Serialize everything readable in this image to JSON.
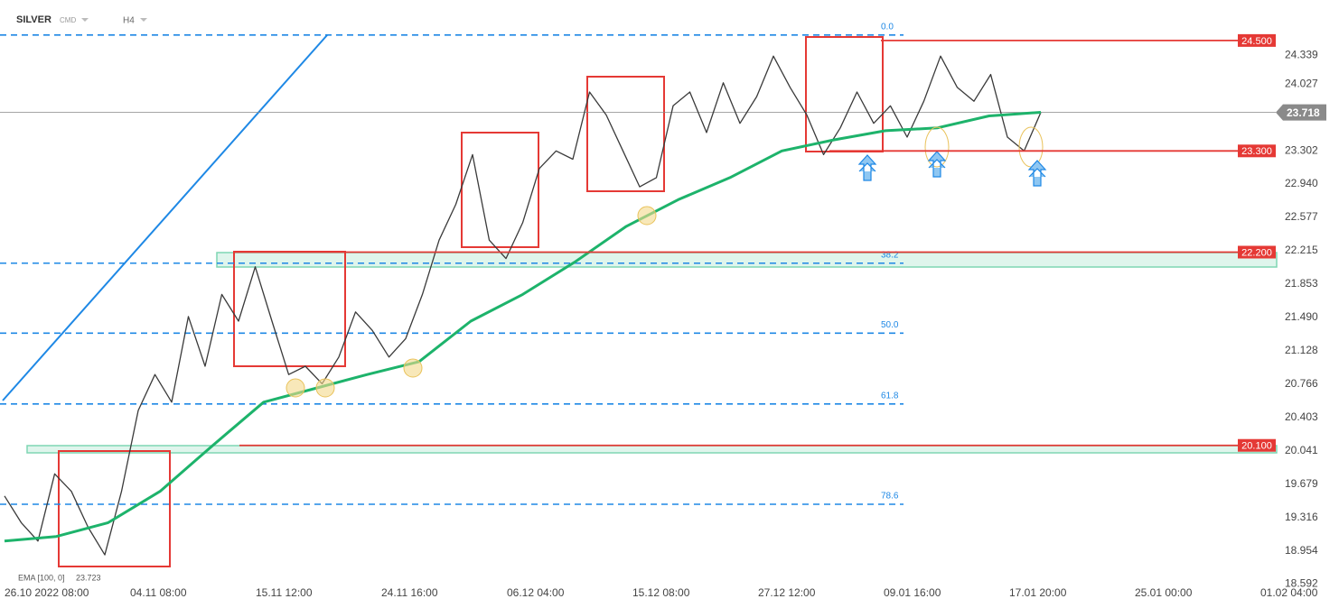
{
  "header": {
    "symbol": "SILVER",
    "kind": "CMD",
    "timeframe": "H4"
  },
  "chart_data": {
    "type": "line",
    "x_labels": [
      "26.10 2022 08:00",
      "04.11 08:00",
      "15.11 12:00",
      "24.11 16:00",
      "06.12 04:00",
      "15.12 08:00",
      "27.12 12:00",
      "09.01 16:00",
      "17.01 20:00",
      "25.01 00:00",
      "01.02 04:00"
    ],
    "ylim": [
      18.47,
      24.94
    ],
    "yticks": [
      24.339,
      24.027,
      23.302,
      {
        "value": 22.94,
        "label": "22.940"
      },
      22.577,
      22.215,
      21.853,
      {
        "value": 21.49,
        "label": "21.490"
      },
      21.128,
      20.766,
      20.403,
      20.041,
      19.679,
      19.316,
      18.954,
      18.592
    ],
    "series": [
      {
        "color": "#3a3a3a",
        "values": [
          19.55,
          19.26,
          19.06,
          19.79,
          19.6,
          19.21,
          18.91,
          19.6,
          20.48,
          20.87,
          20.57,
          21.5,
          20.96,
          21.74,
          21.45,
          22.04,
          21.45,
          20.87,
          20.96,
          20.77,
          21.06,
          21.55,
          21.35,
          21.06,
          21.26,
          21.74,
          22.33,
          22.72,
          23.26,
          22.33,
          22.13,
          22.52,
          23.11,
          23.3,
          23.21,
          23.94,
          23.69,
          23.3,
          22.91,
          23.01,
          23.79,
          23.94,
          23.5,
          24.04,
          23.6,
          23.89,
          24.33,
          23.99,
          23.69,
          23.26,
          23.55,
          23.94,
          23.6,
          23.79,
          23.45,
          23.84,
          24.33,
          23.99,
          23.84,
          24.13,
          23.45,
          23.3,
          23.72
        ]
      },
      {
        "name": "EMA [100, 0]",
        "color": "#1db36b",
        "last_value": 23.723,
        "values": [
          19.06,
          19.11,
          19.26,
          19.6,
          20.09,
          20.57,
          20.72,
          20.87,
          21.01,
          21.45,
          21.74,
          22.09,
          22.48,
          22.77,
          23.01,
          23.3,
          23.42,
          23.52,
          23.55,
          23.68,
          23.72
        ]
      }
    ],
    "levels": [
      {
        "value": 24.5,
        "label": "24.500"
      },
      {
        "value": 23.3,
        "label": "23.300"
      },
      {
        "value": 22.2,
        "label": "22.200"
      },
      {
        "value": 20.1,
        "label": "20.100"
      }
    ],
    "last_price": 23.718,
    "fib_levels": [
      {
        "label": "0.0",
        "price": 24.56
      },
      {
        "label": "38.2",
        "price": 22.08
      },
      {
        "label": "50.0",
        "price": 21.32
      },
      {
        "label": "61.8",
        "price": 20.55
      },
      {
        "label": "78.6",
        "price": 19.46
      }
    ]
  }
}
